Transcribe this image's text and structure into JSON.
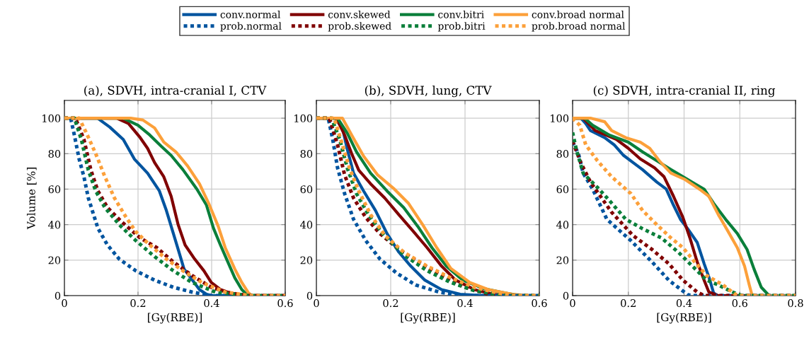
{
  "chart_data": [
    {
      "type": "line",
      "title": "(a), SDVH, intra-cranial I, CTV",
      "xlabel": "[Gy(RBE)]",
      "ylabel": "Volume [%]",
      "xlim": [
        0,
        0.6
      ],
      "ylim": [
        0,
        110
      ],
      "xticks": [
        0,
        0.2,
        0.4,
        0.6
      ],
      "yticks": [
        0,
        20,
        40,
        60,
        80,
        100
      ],
      "grid": true,
      "legend": "top",
      "marker": "none",
      "series": [
        {
          "name": "conv.normal",
          "color": "#00549f",
          "line_style": "solid",
          "x": [
            0,
            0.09,
            0.123,
            0.16,
            0.19,
            0.226,
            0.258,
            0.277,
            0.296,
            0.315,
            0.325,
            0.347,
            0.367,
            0.386,
            0.4,
            0.6
          ],
          "values": [
            100,
            100,
            95,
            88,
            77,
            69,
            59,
            48,
            35,
            22,
            15,
            9,
            3.4,
            0.8,
            0,
            0
          ]
        },
        {
          "name": "conv.skewed",
          "color": "#800000",
          "line_style": "solid",
          "x": [
            0,
            0.142,
            0.174,
            0.206,
            0.226,
            0.245,
            0.27,
            0.29,
            0.309,
            0.328,
            0.354,
            0.379,
            0.399,
            0.424,
            0.45,
            0.5,
            0.6
          ],
          "values": [
            100,
            100,
            97,
            89,
            83,
            75,
            67,
            56,
            40,
            28.5,
            20.6,
            14,
            7.4,
            3.4,
            1.5,
            0,
            0
          ]
        },
        {
          "name": "conv.bitri",
          "color": "#0a7f3a",
          "line_style": "solid",
          "x": [
            0,
            0.16,
            0.2,
            0.232,
            0.264,
            0.29,
            0.322,
            0.36,
            0.386,
            0.405,
            0.424,
            0.444,
            0.463,
            0.482,
            0.495,
            0.5,
            0.6
          ],
          "values": [
            100,
            100,
            96,
            90.5,
            84,
            79,
            71,
            60,
            51,
            38,
            28.5,
            19,
            10,
            3.4,
            0.8,
            0,
            0
          ]
        },
        {
          "name": "conv.broad normal",
          "color": "#fca03a",
          "line_style": "solid",
          "x": [
            0,
            0.18,
            0.213,
            0.245,
            0.27,
            0.303,
            0.335,
            0.367,
            0.392,
            0.418,
            0.437,
            0.463,
            0.482,
            0.5,
            0.51,
            0.6
          ],
          "values": [
            100,
            100,
            99,
            94.5,
            86.5,
            81,
            73,
            63,
            52,
            39,
            27,
            15,
            7.4,
            1.5,
            0,
            0
          ]
        },
        {
          "name": "prob.normal",
          "color": "#00549f",
          "line_style": "dotted",
          "x": [
            0,
            0.017,
            0.027,
            0.04,
            0.053,
            0.065,
            0.091,
            0.117,
            0.149,
            0.194,
            0.245,
            0.296,
            0.347,
            0.386,
            0.4,
            0.6
          ],
          "values": [
            100,
            100,
            90.5,
            77,
            67,
            55,
            38,
            28.5,
            20.6,
            14,
            8.7,
            4.7,
            2,
            0.5,
            0,
            0
          ]
        },
        {
          "name": "prob.skewed",
          "color": "#800000",
          "line_style": "dotted",
          "x": [
            0,
            0.03,
            0.053,
            0.072,
            0.091,
            0.117,
            0.155,
            0.206,
            0.251,
            0.296,
            0.347,
            0.399,
            0.45,
            0.5,
            0.6
          ],
          "values": [
            100,
            100,
            88,
            70.7,
            59,
            49.6,
            41.7,
            32.5,
            27,
            19,
            11.3,
            4.7,
            1.5,
            0,
            0
          ]
        },
        {
          "name": "prob.bitri",
          "color": "#0a7f3a",
          "line_style": "dotted",
          "x": [
            0,
            0.027,
            0.046,
            0.065,
            0.085,
            0.11,
            0.149,
            0.194,
            0.245,
            0.296,
            0.347,
            0.41,
            0.476,
            0.5,
            0.6
          ],
          "values": [
            100,
            100,
            88,
            70.7,
            59,
            49.6,
            40,
            31,
            22,
            14,
            7.4,
            2,
            0.5,
            0,
            0
          ]
        },
        {
          "name": "prob.broad normal",
          "color": "#fca03a",
          "line_style": "dotted",
          "x": [
            0,
            0.04,
            0.059,
            0.085,
            0.11,
            0.136,
            0.168,
            0.194,
            0.232,
            0.277,
            0.322,
            0.373,
            0.437,
            0.488,
            0.5,
            0.6
          ],
          "values": [
            100,
            100,
            92,
            80,
            67,
            55,
            44,
            36,
            28.5,
            20.6,
            14,
            7.4,
            2,
            0.5,
            0,
            0
          ]
        }
      ]
    },
    {
      "type": "line",
      "title": "(b), SDVH, lung, CTV",
      "xlabel": "[Gy(RBE)]",
      "xlim": [
        0,
        0.6
      ],
      "ylim": [
        0,
        110
      ],
      "xticks": [
        0,
        0.2,
        0.4,
        0.6
      ],
      "yticks": [
        0,
        20,
        40,
        60,
        80,
        100
      ],
      "grid": true,
      "marker": "none",
      "series": [
        {
          "color": "#00549f",
          "line_style": "solid",
          "x": [
            0,
            0.05,
            0.07,
            0.083,
            0.1,
            0.127,
            0.159,
            0.19,
            0.222,
            0.254,
            0.292,
            0.337,
            0.387,
            0.45,
            0.6
          ],
          "values": [
            100,
            100,
            94.5,
            82.6,
            69,
            59,
            48,
            35,
            24.5,
            16.6,
            8.7,
            3.4,
            0.8,
            0,
            0
          ]
        },
        {
          "color": "#800000",
          "line_style": "solid",
          "x": [
            0,
            0.054,
            0.076,
            0.095,
            0.114,
            0.146,
            0.184,
            0.222,
            0.26,
            0.298,
            0.337,
            0.375,
            0.425,
            0.476,
            0.52,
            0.6
          ],
          "values": [
            100,
            100,
            90.5,
            80,
            70.7,
            63,
            55,
            45.6,
            36.4,
            27,
            16.6,
            8.7,
            3.4,
            0.8,
            0,
            0
          ]
        },
        {
          "color": "#0a7f3a",
          "line_style": "solid",
          "x": [
            0,
            0.057,
            0.083,
            0.108,
            0.146,
            0.19,
            0.235,
            0.273,
            0.311,
            0.35,
            0.394,
            0.45,
            0.508,
            0.55,
            0.6
          ],
          "values": [
            100,
            100,
            91.6,
            81,
            69,
            59,
            49.6,
            39,
            27,
            16.6,
            8.7,
            4,
            1.5,
            0,
            0
          ]
        },
        {
          "color": "#fca03a",
          "line_style": "solid",
          "x": [
            0,
            0.07,
            0.095,
            0.127,
            0.165,
            0.21,
            0.248,
            0.286,
            0.324,
            0.362,
            0.413,
            0.463,
            0.527,
            0.57,
            0.6
          ],
          "values": [
            100,
            100,
            90.5,
            78.6,
            68,
            60,
            52,
            40,
            27,
            15.3,
            7.4,
            3.4,
            0.8,
            0,
            0
          ]
        },
        {
          "color": "#00549f",
          "line_style": "dotted",
          "x": [
            0,
            0.032,
            0.044,
            0.057,
            0.076,
            0.1,
            0.133,
            0.171,
            0.216,
            0.267,
            0.33,
            0.375,
            0.4,
            0.6
          ],
          "values": [
            100,
            100,
            88,
            72,
            57.5,
            43,
            31,
            20.6,
            12.7,
            6,
            2,
            0.5,
            0,
            0
          ]
        },
        {
          "color": "#800000",
          "line_style": "dotted",
          "x": [
            0,
            0.035,
            0.057,
            0.076,
            0.1,
            0.133,
            0.171,
            0.222,
            0.273,
            0.337,
            0.4,
            0.463,
            0.5,
            0.6
          ],
          "values": [
            100,
            100,
            85,
            68,
            55,
            44,
            35,
            26,
            19,
            11.3,
            4.7,
            0.8,
            0,
            0
          ]
        },
        {
          "color": "#0a7f3a",
          "line_style": "dotted",
          "x": [
            0,
            0.041,
            0.063,
            0.083,
            0.108,
            0.14,
            0.178,
            0.235,
            0.298,
            0.362,
            0.425,
            0.489,
            0.52,
            0.6
          ],
          "values": [
            100,
            100,
            88,
            72,
            57.5,
            45.6,
            35,
            23,
            14,
            7.4,
            2.8,
            0.5,
            0,
            0
          ]
        },
        {
          "color": "#fca03a",
          "line_style": "dotted",
          "x": [
            0,
            0.048,
            0.07,
            0.089,
            0.114,
            0.146,
            0.184,
            0.235,
            0.298,
            0.362,
            0.425,
            0.489,
            0.53,
            0.6
          ],
          "values": [
            100,
            100,
            85,
            72,
            59,
            45.6,
            34,
            24.5,
            16.6,
            10,
            4.7,
            1.5,
            0,
            0
          ]
        }
      ]
    },
    {
      "type": "line",
      "title": "(c) SDVH, intra-cranial II, ring",
      "xlabel": "[Gy(RBE)]",
      "xlim": [
        0,
        0.8
      ],
      "ylim": [
        0,
        110
      ],
      "xticks": [
        0,
        0.2,
        0.4,
        0.6,
        0.8
      ],
      "yticks": [
        0,
        20,
        40,
        60,
        80,
        100
      ],
      "grid": true,
      "marker": "none",
      "series": [
        {
          "color": "#00549f",
          "line_style": "solid",
          "x": [
            0,
            0.03,
            0.047,
            0.064,
            0.115,
            0.149,
            0.183,
            0.217,
            0.251,
            0.302,
            0.336,
            0.362,
            0.387,
            0.413,
            0.447,
            0.472,
            0.49,
            0.506,
            0.52,
            0.8
          ],
          "values": [
            100,
            100,
            97,
            93,
            89,
            85,
            79,
            75,
            71,
            64,
            60,
            51,
            43,
            37.7,
            30,
            18,
            10,
            1.5,
            0,
            0
          ]
        },
        {
          "color": "#800000",
          "line_style": "solid",
          "x": [
            0,
            0.038,
            0.081,
            0.157,
            0.2,
            0.243,
            0.294,
            0.328,
            0.362,
            0.396,
            0.421,
            0.447,
            0.472,
            0.489,
            0.523,
            0.8
          ],
          "values": [
            100,
            100,
            93,
            88,
            83,
            77,
            72,
            67,
            56,
            44,
            32.5,
            19,
            8.7,
            2,
            0,
            0
          ]
        },
        {
          "color": "#0a7f3a",
          "line_style": "solid",
          "x": [
            0,
            0.043,
            0.072,
            0.132,
            0.2,
            0.251,
            0.302,
            0.353,
            0.413,
            0.472,
            0.506,
            0.549,
            0.591,
            0.626,
            0.651,
            0.677,
            0.702,
            0.71,
            0.8
          ],
          "values": [
            100,
            100,
            96,
            90.5,
            86.5,
            81,
            76,
            71,
            65.4,
            60,
            52,
            43,
            35,
            26,
            15,
            4.7,
            0.5,
            0,
            0
          ]
        },
        {
          "color": "#fca03a",
          "line_style": "solid",
          "x": [
            0,
            0.064,
            0.115,
            0.14,
            0.191,
            0.243,
            0.277,
            0.311,
            0.353,
            0.404,
            0.455,
            0.489,
            0.523,
            0.557,
            0.591,
            0.617,
            0.634,
            0.643,
            0.65,
            0.8
          ],
          "values": [
            100,
            100,
            98,
            93,
            89,
            86.5,
            83,
            76,
            69,
            65.4,
            60,
            56,
            45.6,
            36.4,
            27,
            16.6,
            6,
            0.8,
            0,
            0
          ]
        },
        {
          "color": "#00549f",
          "line_style": "dotted",
          "x": [
            0,
            0.021,
            0.038,
            0.072,
            0.123,
            0.209,
            0.285,
            0.345,
            0.413,
            0.43,
            0.8
          ],
          "values": [
            86.5,
            80,
            69,
            60,
            43,
            31,
            19,
            8.7,
            0.5,
            0,
            0
          ]
        },
        {
          "color": "#800000",
          "line_style": "dotted",
          "x": [
            0,
            0.03,
            0.064,
            0.14,
            0.217,
            0.285,
            0.345,
            0.396,
            0.447,
            0.472,
            0.8
          ],
          "values": [
            87,
            74.7,
            64,
            47,
            33.8,
            26,
            18,
            8.7,
            2,
            0,
            0
          ]
        },
        {
          "color": "#0a7f3a",
          "line_style": "dotted",
          "x": [
            0,
            0.013,
            0.038,
            0.089,
            0.132,
            0.191,
            0.251,
            0.319,
            0.379,
            0.43,
            0.481,
            0.523,
            0.574,
            0.609,
            0.8
          ],
          "values": [
            92,
            82.6,
            69,
            61,
            53.6,
            43,
            37.7,
            32.5,
            24.5,
            16.6,
            8.7,
            6,
            2,
            0,
            0
          ]
        },
        {
          "color": "#fca03a",
          "line_style": "dotted",
          "x": [
            0,
            0.026,
            0.047,
            0.089,
            0.14,
            0.209,
            0.251,
            0.302,
            0.353,
            0.396,
            0.438,
            0.481,
            0.54,
            0.583,
            0.6,
            0.8
          ],
          "values": [
            100,
            96,
            85,
            76,
            67,
            57.5,
            48,
            40,
            32.5,
            27,
            19,
            11.3,
            6,
            0.8,
            0,
            0
          ]
        }
      ]
    }
  ]
}
